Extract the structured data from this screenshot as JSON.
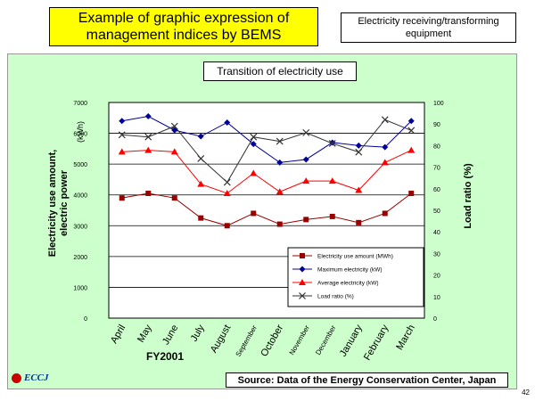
{
  "header": {
    "title_line1": "Example of graphic expression of",
    "title_line2": "management indices by BEMS",
    "equipment_line1": "Electricity receiving/transforming",
    "equipment_line2": "equipment"
  },
  "footer": {
    "source": "Source: Data of the Energy Conservation Center, Japan",
    "logo_text": "ECCJ",
    "page_number": "42"
  },
  "chart_data": {
    "type": "line",
    "title": "Transition of electricity use",
    "xlabel": "FY2001",
    "ylabel_left_line1": "Electricity use amount,",
    "ylabel_left_line2": "electric power",
    "ylabel_left_unit": "(kWh)",
    "ylabel_right": "Load ratio (%)",
    "x": [
      "April",
      "May",
      "June",
      "July",
      "August",
      "September",
      "October",
      "November",
      "December",
      "January",
      "February",
      "March"
    ],
    "y_left_ticks": [
      "0",
      "1000",
      "2000",
      "3000",
      "4000",
      "5000",
      "6000",
      "7000"
    ],
    "y_right_ticks": [
      "0",
      "10",
      "20",
      "30",
      "40",
      "50",
      "60",
      "70",
      "80",
      "90",
      "100"
    ],
    "ylim_left": [
      0,
      7000
    ],
    "ylim_right": [
      0,
      100
    ],
    "grid": true,
    "legend_position": "bottom-right",
    "series": [
      {
        "name": "Electricity use amount (MWh)",
        "axis": "left",
        "color": "#990000",
        "marker": "square",
        "values": [
          3900,
          4050,
          3900,
          3250,
          3000,
          3400,
          3050,
          3200,
          3300,
          3100,
          3400,
          4050
        ]
      },
      {
        "name": "Maximum electricity (kW)",
        "axis": "left",
        "color": "#000099",
        "marker": "diamond",
        "values": [
          6400,
          6550,
          6100,
          5900,
          6350,
          5650,
          5050,
          5150,
          5700,
          5600,
          5550,
          6400
        ]
      },
      {
        "name": "Average electricity (kW)",
        "axis": "left",
        "color": "#ff0000",
        "marker": "triangle",
        "values": [
          5400,
          5450,
          5400,
          4350,
          4050,
          4700,
          4100,
          4450,
          4450,
          4150,
          5050,
          5450
        ]
      },
      {
        "name": "Load ratio (%)",
        "axis": "right",
        "color": "#333333",
        "marker": "x",
        "values": [
          85,
          84,
          89,
          74,
          63,
          84,
          82,
          86,
          81,
          77,
          92,
          87
        ]
      }
    ]
  }
}
